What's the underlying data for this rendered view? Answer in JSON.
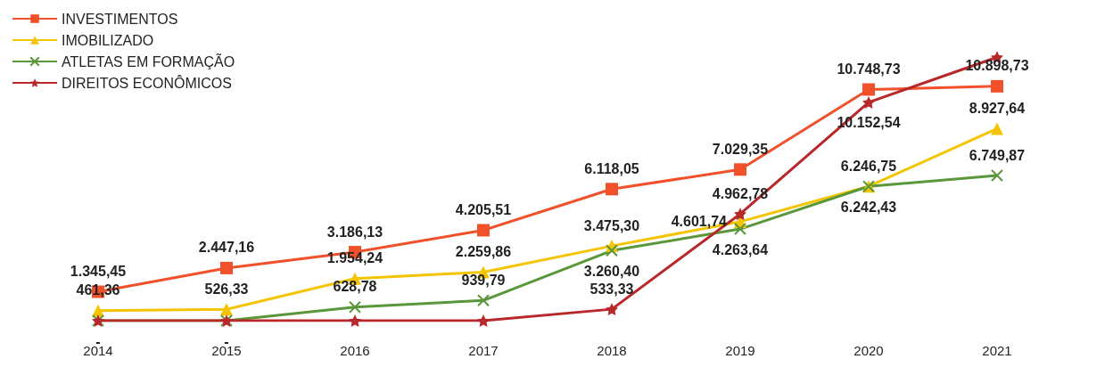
{
  "chart_data": {
    "type": "line",
    "categories": [
      "2014",
      "2015",
      "2016",
      "2017",
      "2018",
      "2019",
      "2020",
      "2021"
    ],
    "series": [
      {
        "name": "INVESTIMENTOS",
        "color": "#f0502a",
        "marker": "square",
        "values": [
          1345.45,
          2447.16,
          3186.13,
          4205.51,
          6118.05,
          7029.35,
          10748.73,
          10898.73
        ],
        "value_labels": [
          "1.345,45",
          "2.447,16",
          "3.186,13",
          "4.205,51",
          "6.118,05",
          "7.029,35",
          "10.748,73",
          "10.898,73"
        ]
      },
      {
        "name": "IMOBILIZADO",
        "color": "#f5c400",
        "marker": "triangle",
        "values": [
          461.36,
          526.33,
          1954.24,
          2259.86,
          3475.3,
          4601.74,
          6246.75,
          8927.64
        ],
        "value_labels": [
          "461,36",
          "526,33",
          "1.954,24",
          "2.259,86",
          "3.475,30",
          "4.601,74",
          "6.246,75",
          "8.927,64"
        ]
      },
      {
        "name": "ATLETAS EM FORMAÇÃO",
        "color": "#5a963a",
        "marker": "cross",
        "values": [
          0,
          0,
          628.78,
          939.79,
          3260.4,
          4263.64,
          6242.43,
          6749.87
        ],
        "value_labels": [
          "-",
          "-",
          "628,78",
          "939,79",
          "3.260,40",
          "4.263,64",
          "6.242,43",
          "6.749,87"
        ]
      },
      {
        "name": "DIREITOS ECONÔMICOS",
        "color": "#b8282a",
        "marker": "star",
        "values": [
          0,
          0,
          0,
          0,
          533.33,
          4962.78,
          10152.54,
          12250
        ],
        "value_labels": [
          null,
          null,
          null,
          null,
          "533,33",
          "4.962,78",
          "10.152,54",
          null
        ]
      }
    ],
    "legend": "top left",
    "grid": false
  }
}
